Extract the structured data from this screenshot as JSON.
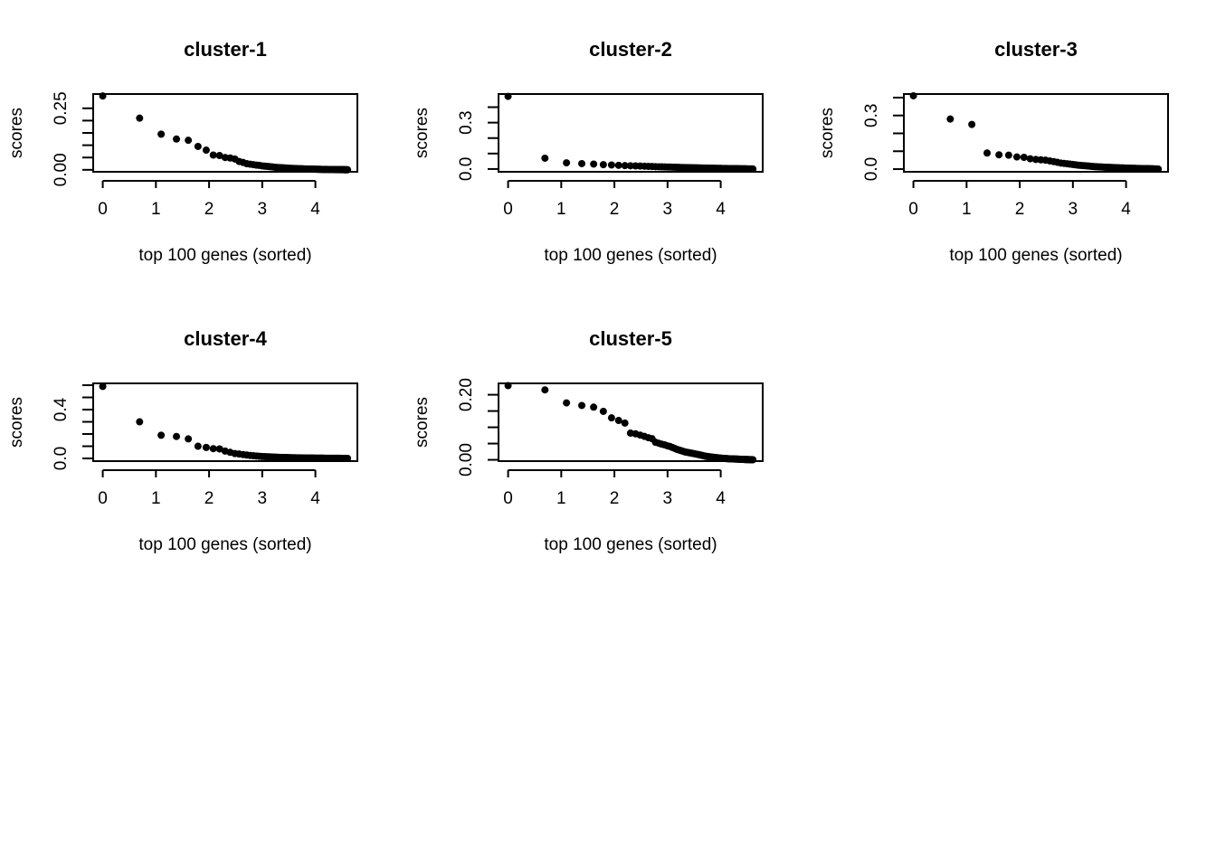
{
  "figure": {
    "background": "#ffffff",
    "point_color": "#000000"
  },
  "chart_data": [
    {
      "type": "scatter",
      "title": "cluster-1",
      "xlabel": "top 100 genes (sorted)",
      "ylabel": "scores",
      "xlim": [
        -0.18,
        4.79
      ],
      "ylim": [
        -0.008,
        0.308
      ],
      "xticks": [
        0,
        1,
        2,
        3,
        4
      ],
      "xtick_labels": [
        "0",
        "1",
        "2",
        "3",
        "4"
      ],
      "yticks": [
        0,
        0.05,
        0.1,
        0.15,
        0.2,
        0.25
      ],
      "ytick_labels": [
        "0.00",
        "",
        "",
        "",
        "",
        "0.25"
      ],
      "x": "log(rank)",
      "y": [
        0.3,
        0.21,
        0.145,
        0.125,
        0.12,
        0.095,
        0.08,
        0.06,
        0.058,
        0.05,
        0.048,
        0.044,
        0.034,
        0.03,
        0.025,
        0.023,
        0.021,
        0.019,
        0.018,
        0.016,
        0.015,
        0.014,
        0.013,
        0.012,
        0.011,
        0.01,
        0.0095,
        0.009,
        0.0085,
        0.008,
        0.0076,
        0.0072,
        0.0068,
        0.0064,
        0.006,
        0.0057,
        0.0054,
        0.0051,
        0.0048,
        0.0046,
        0.0044,
        0.0042,
        0.004,
        0.0038,
        0.0036,
        0.0034,
        0.0032,
        0.0031,
        0.003,
        0.0029,
        0.0028,
        0.0027,
        0.0026,
        0.0025,
        0.0024,
        0.0023,
        0.0022,
        0.0021,
        0.002,
        0.0019,
        0.0018,
        0.00175,
        0.0017,
        0.00165,
        0.0016,
        0.00155,
        0.0015,
        0.00145,
        0.0014,
        0.00135,
        0.0013,
        0.00125,
        0.0012,
        0.00115,
        0.0011,
        0.00105,
        0.001,
        0.00097,
        0.00094,
        0.00091,
        0.00088,
        0.00085,
        0.00082,
        0.00079,
        0.00076,
        0.00073,
        0.0007,
        0.00067,
        0.00064,
        0.00061,
        0.00058,
        0.00055,
        0.00052,
        0.00049,
        0.00046,
        0.00043,
        0.0004,
        0.00037,
        0.00034,
        0.0003
      ]
    },
    {
      "type": "scatter",
      "title": "cluster-2",
      "xlabel": "top 100 genes (sorted)",
      "ylabel": "scores",
      "xlim": [
        -0.18,
        4.79
      ],
      "ylim": [
        -0.018,
        0.485
      ],
      "xticks": [
        0,
        1,
        2,
        3,
        4
      ],
      "xtick_labels": [
        "0",
        "1",
        "2",
        "3",
        "4"
      ],
      "yticks": [
        0,
        0.1,
        0.2,
        0.3,
        0.4
      ],
      "ytick_labels": [
        "0.0",
        "",
        "",
        "0.3",
        ""
      ],
      "x": "log(rank)",
      "y": [
        0.47,
        0.07,
        0.04,
        0.035,
        0.032,
        0.028,
        0.026,
        0.024,
        0.022,
        0.021,
        0.02,
        0.019,
        0.018,
        0.017,
        0.016,
        0.015,
        0.0145,
        0.014,
        0.0135,
        0.013,
        0.0125,
        0.012,
        0.0115,
        0.011,
        0.0105,
        0.01,
        0.0097,
        0.0094,
        0.0091,
        0.0088,
        0.0085,
        0.0082,
        0.0079,
        0.0076,
        0.0073,
        0.007,
        0.0068,
        0.0066,
        0.0064,
        0.0062,
        0.006,
        0.0058,
        0.0056,
        0.0054,
        0.0052,
        0.005,
        0.0048,
        0.0046,
        0.0044,
        0.0042,
        0.004,
        0.0039,
        0.0038,
        0.0037,
        0.0036,
        0.0035,
        0.0034,
        0.0033,
        0.0032,
        0.0031,
        0.003,
        0.0029,
        0.0028,
        0.0027,
        0.0026,
        0.0025,
        0.0024,
        0.0023,
        0.0022,
        0.0021,
        0.002,
        0.0019,
        0.0018,
        0.0017,
        0.0016,
        0.0015,
        0.0014,
        0.0013,
        0.0012,
        0.0011,
        0.001,
        0.00095,
        0.0009,
        0.00085,
        0.0008,
        0.00075,
        0.0007,
        0.00065,
        0.0006,
        0.00055,
        0.0005,
        0.00045,
        0.0004,
        0.00035,
        0.0003,
        0.00025,
        0.0002,
        0.00015,
        0.0001,
        5e-05
      ]
    },
    {
      "type": "scatter",
      "title": "cluster-3",
      "xlabel": "top 100 genes (sorted)",
      "ylabel": "scores",
      "xlim": [
        -0.18,
        4.79
      ],
      "ylim": [
        -0.015,
        0.42
      ],
      "xticks": [
        0,
        1,
        2,
        3,
        4
      ],
      "xtick_labels": [
        "0",
        "1",
        "2",
        "3",
        "4"
      ],
      "yticks": [
        0,
        0.1,
        0.2,
        0.3,
        0.4
      ],
      "ytick_labels": [
        "0.0",
        "",
        "",
        "0.3",
        ""
      ],
      "x": "log(rank)",
      "y": [
        0.41,
        0.28,
        0.25,
        0.09,
        0.08,
        0.078,
        0.068,
        0.066,
        0.058,
        0.054,
        0.052,
        0.05,
        0.046,
        0.042,
        0.038,
        0.034,
        0.032,
        0.03,
        0.028,
        0.026,
        0.024,
        0.022,
        0.021,
        0.02,
        0.019,
        0.018,
        0.017,
        0.016,
        0.015,
        0.014,
        0.0135,
        0.013,
        0.0125,
        0.012,
        0.0115,
        0.011,
        0.0105,
        0.01,
        0.0097,
        0.0094,
        0.0091,
        0.0088,
        0.0085,
        0.0082,
        0.0079,
        0.0076,
        0.0073,
        0.007,
        0.0068,
        0.0066,
        0.0064,
        0.0062,
        0.006,
        0.0058,
        0.0056,
        0.0054,
        0.0052,
        0.005,
        0.0048,
        0.0046,
        0.0044,
        0.0042,
        0.004,
        0.0039,
        0.0038,
        0.0037,
        0.0036,
        0.0035,
        0.0034,
        0.0033,
        0.0032,
        0.0031,
        0.003,
        0.0029,
        0.0028,
        0.0027,
        0.0026,
        0.0025,
        0.0024,
        0.0023,
        0.0022,
        0.0021,
        0.002,
        0.0019,
        0.0018,
        0.0017,
        0.0016,
        0.0015,
        0.0014,
        0.0013,
        0.0012,
        0.0011,
        0.001,
        0.0009,
        0.0008,
        0.0007,
        0.0006,
        0.0005,
        0.0004,
        0.0003
      ]
    },
    {
      "type": "scatter",
      "title": "cluster-4",
      "xlabel": "top 100 genes (sorted)",
      "ylabel": "scores",
      "xlim": [
        -0.18,
        4.79
      ],
      "ylim": [
        -0.022,
        0.615
      ],
      "xticks": [
        0,
        1,
        2,
        3,
        4
      ],
      "xtick_labels": [
        "0",
        "1",
        "2",
        "3",
        "4"
      ],
      "yticks": [
        0,
        0.1,
        0.2,
        0.3,
        0.4,
        0.5,
        0.6
      ],
      "ytick_labels": [
        "0.0",
        "",
        "",
        "",
        "0.4",
        "",
        ""
      ],
      "x": "log(rank)",
      "y": [
        0.59,
        0.3,
        0.19,
        0.18,
        0.16,
        0.1,
        0.09,
        0.08,
        0.078,
        0.06,
        0.05,
        0.04,
        0.036,
        0.032,
        0.028,
        0.024,
        0.022,
        0.02,
        0.018,
        0.016,
        0.015,
        0.014,
        0.013,
        0.012,
        0.011,
        0.01,
        0.0095,
        0.009,
        0.0085,
        0.008,
        0.0076,
        0.0072,
        0.0068,
        0.0064,
        0.006,
        0.0057,
        0.0054,
        0.0051,
        0.0048,
        0.0046,
        0.0044,
        0.0042,
        0.004,
        0.0038,
        0.0036,
        0.0034,
        0.0032,
        0.0031,
        0.003,
        0.0029,
        0.0028,
        0.0027,
        0.0026,
        0.0025,
        0.0024,
        0.0023,
        0.0022,
        0.0021,
        0.002,
        0.0019,
        0.0018,
        0.00175,
        0.0017,
        0.00165,
        0.0016,
        0.00155,
        0.0015,
        0.00145,
        0.0014,
        0.00135,
        0.0013,
        0.00125,
        0.0012,
        0.00115,
        0.0011,
        0.00105,
        0.001,
        0.00097,
        0.00094,
        0.00091,
        0.00088,
        0.00085,
        0.00082,
        0.00079,
        0.00076,
        0.00073,
        0.0007,
        0.00067,
        0.00064,
        0.00061,
        0.00058,
        0.00055,
        0.00052,
        0.00049,
        0.00046,
        0.00043,
        0.0004,
        0.00037,
        0.00034,
        0.0003
      ]
    },
    {
      "type": "scatter",
      "title": "cluster-5",
      "xlabel": "top 100 genes (sorted)",
      "ylabel": "scores",
      "xlim": [
        -0.18,
        4.79
      ],
      "ylim": [
        -0.004,
        0.235
      ],
      "xticks": [
        0,
        1,
        2,
        3,
        4
      ],
      "xtick_labels": [
        "0",
        "1",
        "2",
        "3",
        "4"
      ],
      "yticks": [
        0,
        0.05,
        0.1,
        0.15,
        0.2
      ],
      "ytick_labels": [
        "0.00",
        "",
        "",
        "",
        "0.20"
      ],
      "x": "log(rank)",
      "y": [
        0.228,
        0.215,
        0.175,
        0.167,
        0.162,
        0.149,
        0.129,
        0.121,
        0.113,
        0.082,
        0.08,
        0.076,
        0.072,
        0.068,
        0.065,
        0.054,
        0.051,
        0.048,
        0.046,
        0.043,
        0.041,
        0.038,
        0.035,
        0.032,
        0.03,
        0.028,
        0.026,
        0.024,
        0.023,
        0.022,
        0.021,
        0.02,
        0.019,
        0.018,
        0.017,
        0.016,
        0.015,
        0.014,
        0.013,
        0.012,
        0.011,
        0.0105,
        0.01,
        0.0095,
        0.009,
        0.0085,
        0.008,
        0.0076,
        0.0072,
        0.0068,
        0.0064,
        0.006,
        0.0057,
        0.0054,
        0.0051,
        0.0048,
        0.0046,
        0.0044,
        0.0042,
        0.004,
        0.0038,
        0.0036,
        0.0034,
        0.0032,
        0.0031,
        0.003,
        0.0029,
        0.0028,
        0.0027,
        0.0026,
        0.0025,
        0.0024,
        0.0023,
        0.0022,
        0.0021,
        0.002,
        0.0019,
        0.0018,
        0.0017,
        0.0016,
        0.0015,
        0.0014,
        0.0013,
        0.0012,
        0.0011,
        0.001,
        0.00095,
        0.0009,
        0.00085,
        0.0008,
        0.00075,
        0.0007,
        0.00065,
        0.0006,
        0.00055,
        0.0005,
        0.00045,
        0.0004,
        0.00035,
        0.0003
      ]
    }
  ]
}
